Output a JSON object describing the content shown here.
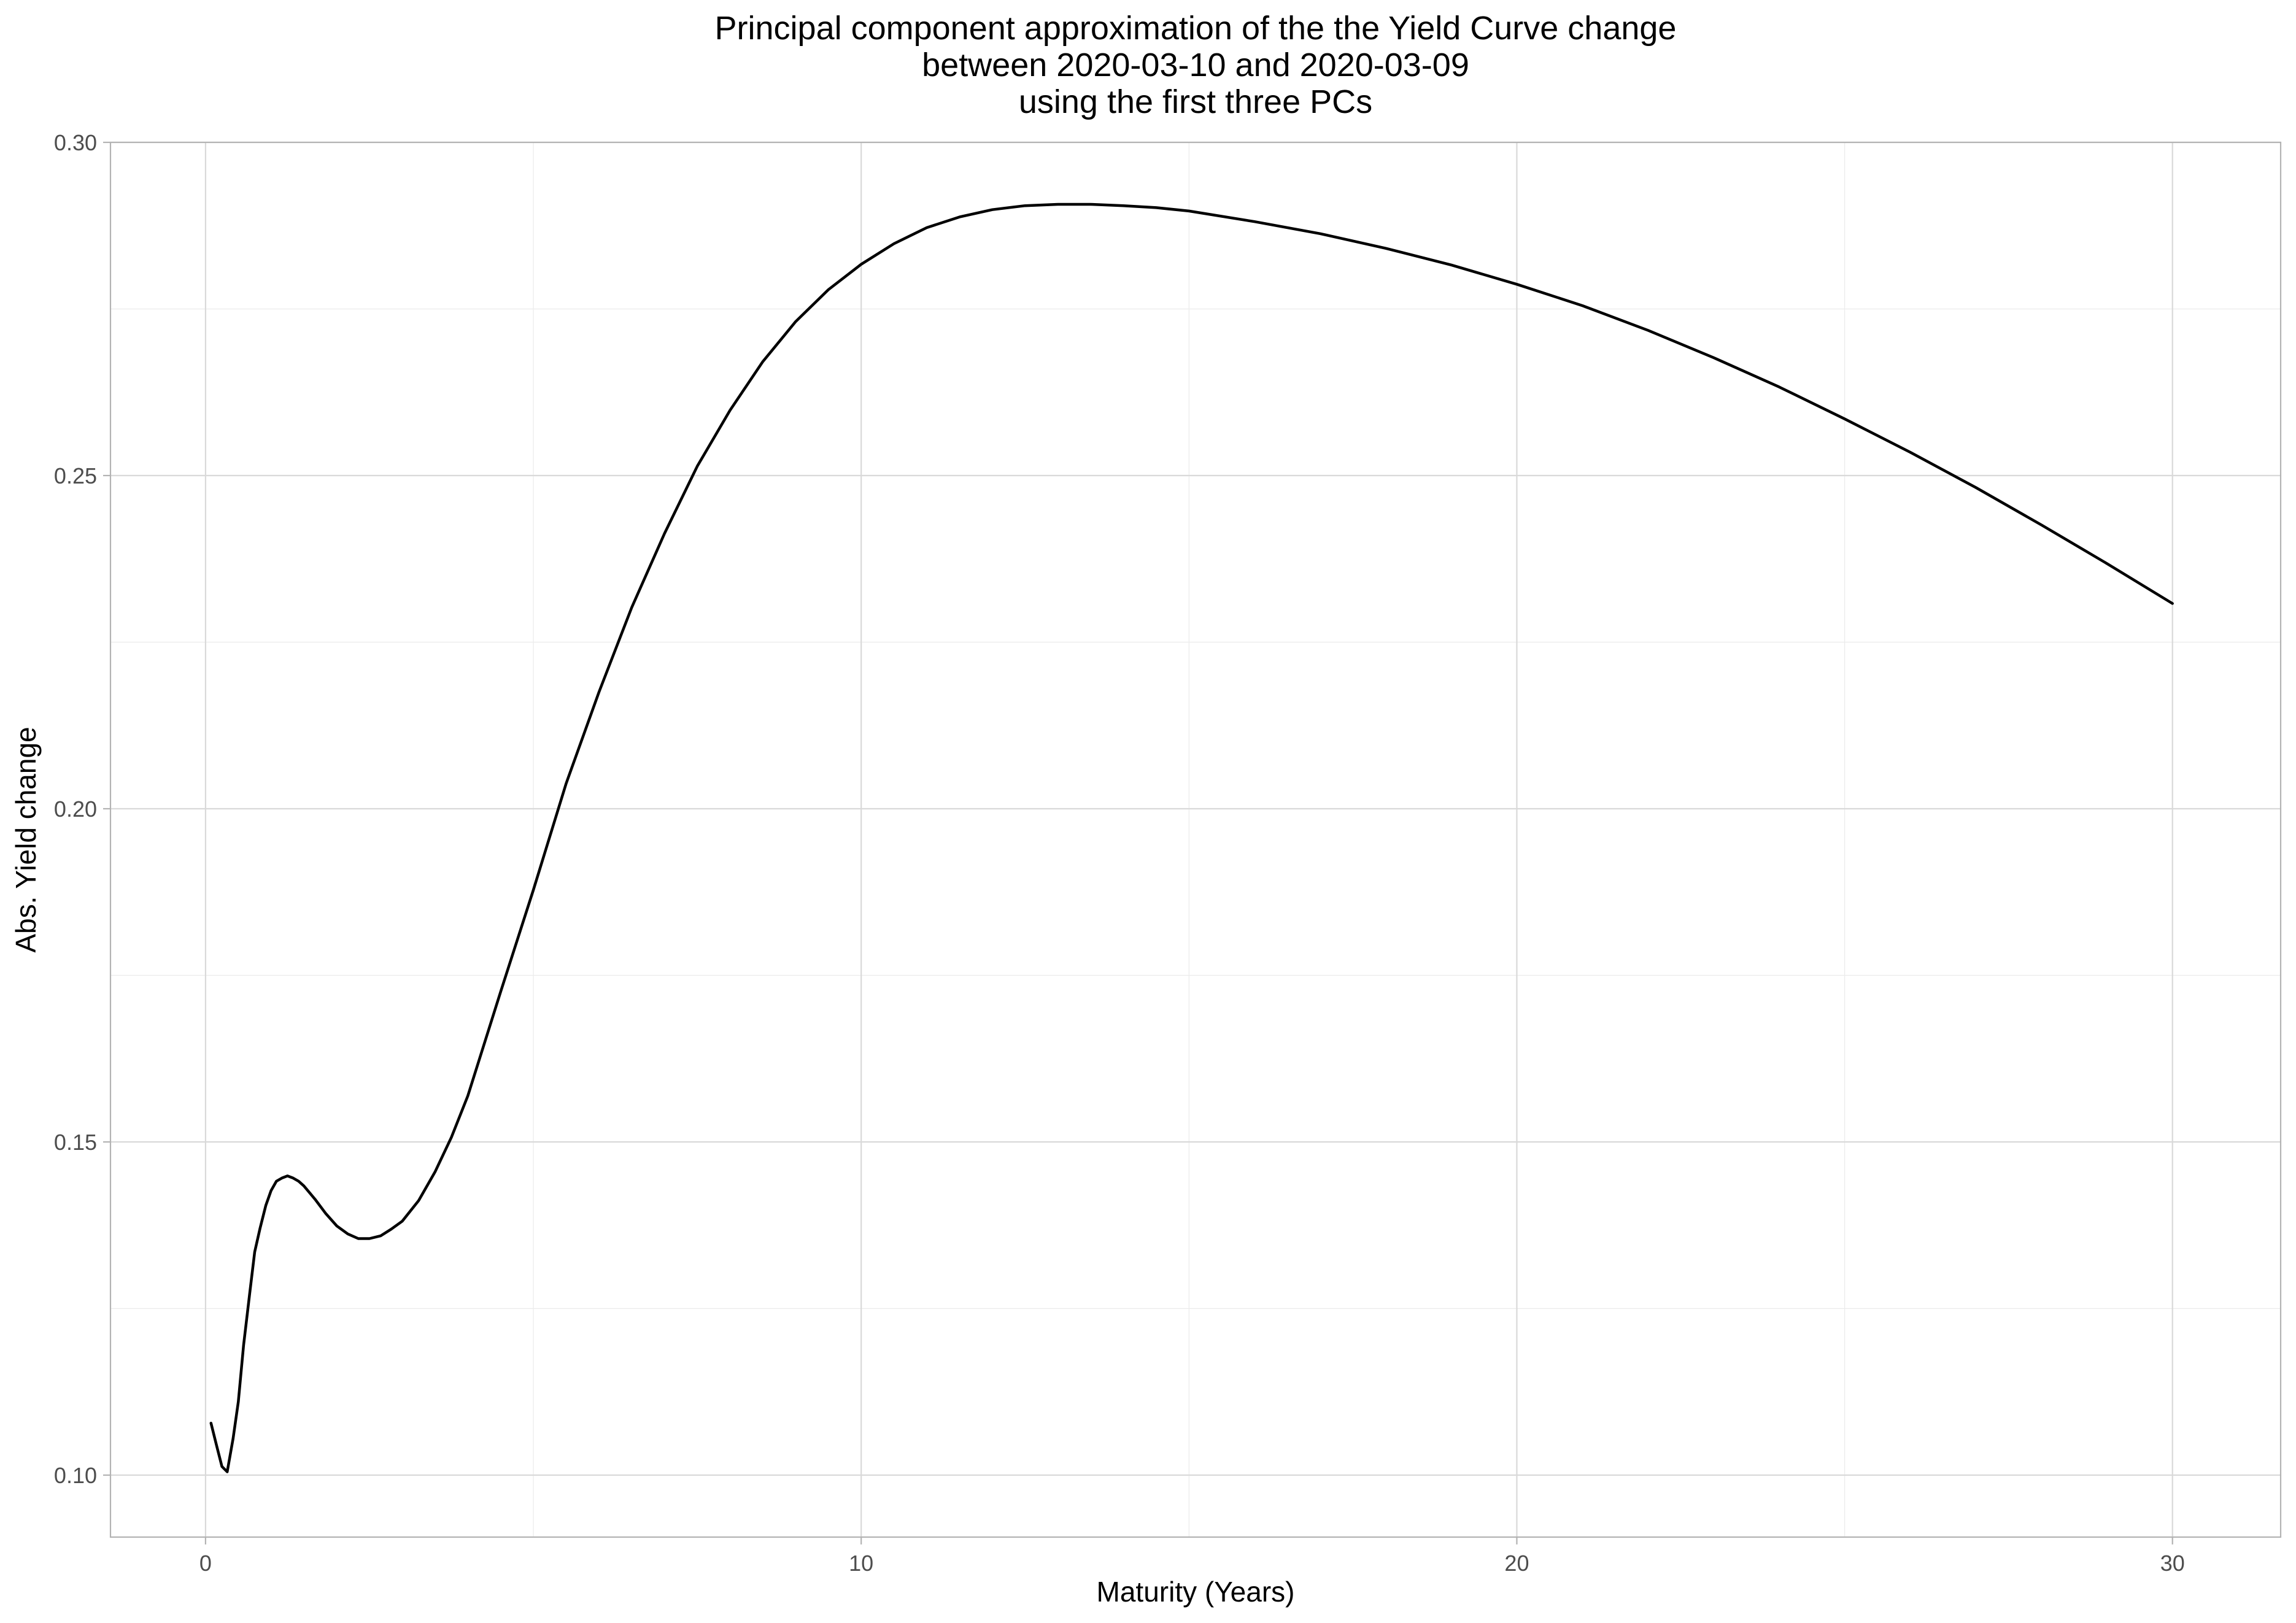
{
  "chart_data": {
    "type": "line",
    "title": [
      "Principal component approximation of the the Yield Curve change",
      "between 2020-03-10 and 2020-03-09",
      "using the first three PCs"
    ],
    "xlabel": "Maturity (Years)",
    "ylabel": "Abs. Yield change",
    "xlim": [
      -1.45,
      31.65
    ],
    "ylim": [
      0.0907,
      0.3
    ],
    "x_ticks": [
      0,
      10,
      20,
      30
    ],
    "x_tick_labels": [
      "0",
      "10",
      "20",
      "30"
    ],
    "x_minor_ticks": [
      5,
      15,
      25
    ],
    "y_ticks": [
      0.1,
      0.15,
      0.2,
      0.25,
      0.3
    ],
    "y_tick_labels": [
      "0.10",
      "0.15",
      "0.20",
      "0.25",
      "0.30"
    ],
    "y_minor_ticks": [
      0.125,
      0.175,
      0.225,
      0.275
    ],
    "grid": true,
    "legend": "none",
    "series": [
      {
        "color": "#000000",
        "x": [
          0.083,
          0.167,
          0.25,
          0.33,
          0.42,
          0.5,
          0.58,
          0.67,
          0.75,
          0.83,
          0.92,
          1.0,
          1.08,
          1.17,
          1.25,
          1.33,
          1.42,
          1.5,
          1.67,
          1.83,
          2.0,
          2.17,
          2.33,
          2.5,
          2.67,
          2.83,
          3.0,
          3.25,
          3.5,
          3.75,
          4.0,
          4.5,
          5.0,
          5.5,
          6.0,
          6.5,
          7.0,
          7.5,
          8.0,
          8.5,
          9.0,
          9.5,
          10.0,
          10.5,
          11.0,
          11.5,
          12.0,
          12.5,
          13.0,
          13.5,
          14.0,
          14.5,
          15.0,
          16.0,
          17.0,
          18.0,
          19.0,
          20.0,
          21.0,
          22.0,
          23.0,
          24.0,
          25.0,
          26.0,
          27.0,
          28.0,
          29.0,
          30.0
        ],
        "y": [
          0.1078,
          0.1045,
          0.1013,
          0.1005,
          0.1055,
          0.111,
          0.1195,
          0.127,
          0.1335,
          0.137,
          0.1405,
          0.1427,
          0.1441,
          0.1446,
          0.1449,
          0.1446,
          0.1441,
          0.1434,
          0.1414,
          0.1393,
          0.1374,
          0.1362,
          0.1355,
          0.1355,
          0.1359,
          0.1369,
          0.1381,
          0.1412,
          0.1455,
          0.1507,
          0.1569,
          0.1725,
          0.1878,
          0.2038,
          0.2175,
          0.2302,
          0.2413,
          0.2514,
          0.2598,
          0.2671,
          0.2731,
          0.2779,
          0.2817,
          0.2848,
          0.2872,
          0.2888,
          0.2899,
          0.2905,
          0.2907,
          0.2907,
          0.2905,
          0.2902,
          0.2897,
          0.2881,
          0.2863,
          0.2841,
          0.2816,
          0.2787,
          0.2755,
          0.2718,
          0.2677,
          0.2633,
          0.2585,
          0.2535,
          0.2482,
          0.2426,
          0.2368,
          0.2308
        ]
      }
    ]
  }
}
